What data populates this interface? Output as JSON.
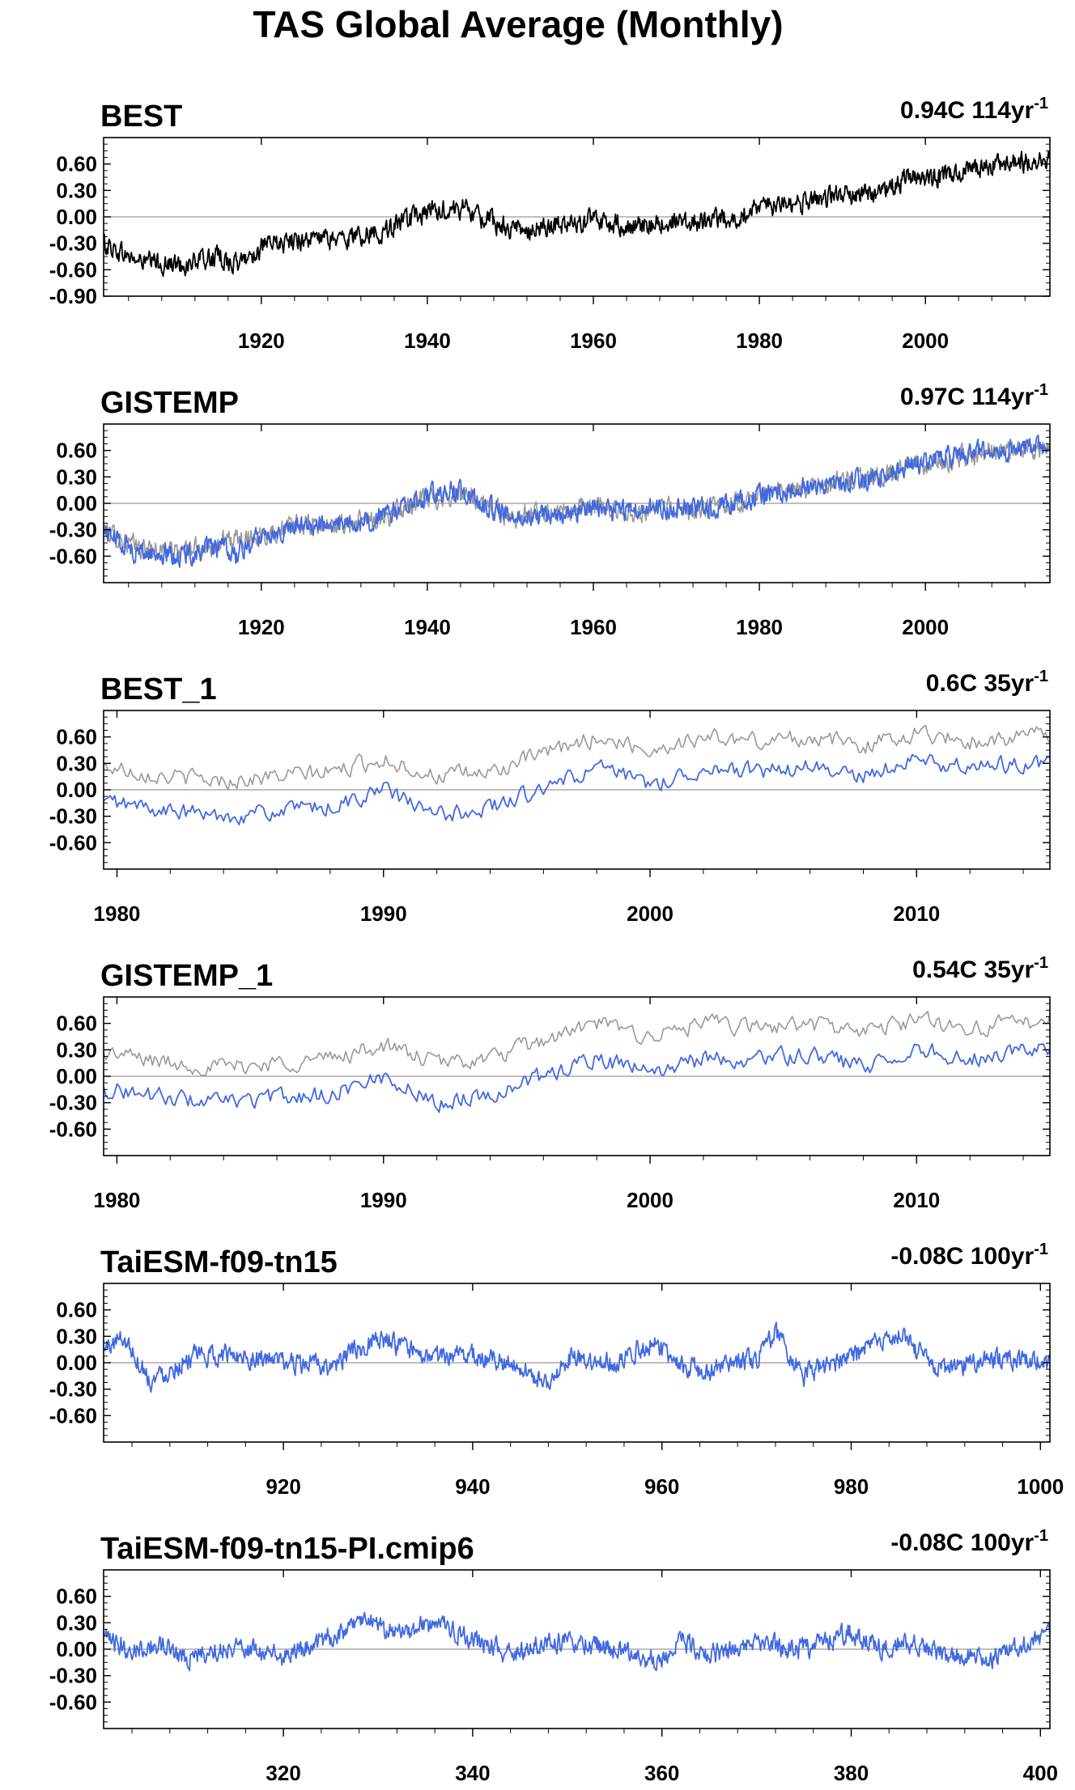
{
  "figure_title": "TAS Global Average (Monthly)",
  "colors": {
    "model": "#4169e1",
    "obs": "#000000",
    "reference": "#999999",
    "zero_line": "#999999"
  },
  "chart_data": [
    {
      "type": "line",
      "name": "BEST",
      "trend_label": "0.94C 114yr",
      "trend_exponent": "-1",
      "xlim": [
        1901,
        2015
      ],
      "ylim": [
        -0.9,
        0.9
      ],
      "yticks": [
        "0.60",
        "0.30",
        "0.00",
        "-0.30",
        "-0.60",
        "-0.90"
      ],
      "ytick_values": [
        0.6,
        0.3,
        0.0,
        -0.3,
        -0.6,
        -0.9
      ],
      "xticks": [
        "1920",
        "1940",
        "1960",
        "1980",
        "2000"
      ],
      "xtick_values": [
        1920,
        1940,
        1960,
        1980,
        2000
      ],
      "series": [
        {
          "color": "obs",
          "x": [
            1901,
            1905,
            1910,
            1915,
            1917,
            1920,
            1925,
            1930,
            1935,
            1940,
            1944,
            1950,
            1955,
            1960,
            1965,
            1970,
            1975,
            1980,
            1985,
            1990,
            1995,
            1998,
            2000,
            2005,
            2010,
            2015
          ],
          "y": [
            -0.3,
            -0.5,
            -0.55,
            -0.45,
            -0.55,
            -0.35,
            -0.25,
            -0.25,
            -0.15,
            0.05,
            0.1,
            -0.15,
            -0.1,
            -0.05,
            -0.1,
            -0.05,
            -0.05,
            0.1,
            0.15,
            0.25,
            0.3,
            0.45,
            0.4,
            0.55,
            0.6,
            0.65
          ]
        }
      ]
    },
    {
      "type": "line",
      "name": "GISTEMP",
      "trend_label": "0.97C 114yr",
      "trend_exponent": "-1",
      "xlim": [
        1901,
        2015
      ],
      "ylim": [
        -0.9,
        0.9
      ],
      "yticks": [
        "0.60",
        "0.30",
        "0.00",
        "-0.30",
        "-0.60"
      ],
      "ytick_values": [
        0.6,
        0.3,
        0.0,
        -0.3,
        -0.6
      ],
      "xticks": [
        "1920",
        "1940",
        "1960",
        "1980",
        "2000"
      ],
      "xtick_values": [
        1920,
        1940,
        1960,
        1980,
        2000
      ],
      "series": [
        {
          "color": "reference",
          "x": [
            1901,
            1905,
            1910,
            1915,
            1920,
            1925,
            1930,
            1935,
            1940,
            1944,
            1950,
            1955,
            1960,
            1965,
            1970,
            1975,
            1980,
            1985,
            1990,
            1995,
            1998,
            2000,
            2005,
            2010,
            2015
          ],
          "y": [
            -0.3,
            -0.5,
            -0.55,
            -0.45,
            -0.35,
            -0.25,
            -0.25,
            -0.15,
            0.05,
            0.1,
            -0.15,
            -0.1,
            -0.05,
            -0.1,
            -0.05,
            -0.05,
            0.1,
            0.15,
            0.25,
            0.3,
            0.45,
            0.4,
            0.55,
            0.6,
            0.65
          ]
        },
        {
          "color": "model",
          "x": [
            1901,
            1905,
            1910,
            1915,
            1917,
            1920,
            1925,
            1930,
            1935,
            1940,
            1944,
            1950,
            1955,
            1960,
            1965,
            1970,
            1975,
            1980,
            1985,
            1990,
            1995,
            1998,
            2000,
            2005,
            2010,
            2015
          ],
          "y": [
            -0.3,
            -0.55,
            -0.6,
            -0.5,
            -0.6,
            -0.35,
            -0.25,
            -0.25,
            -0.15,
            0.1,
            0.15,
            -0.15,
            -0.15,
            -0.05,
            -0.1,
            -0.05,
            -0.05,
            0.1,
            0.15,
            0.25,
            0.3,
            0.45,
            0.45,
            0.6,
            0.6,
            0.65
          ]
        }
      ]
    },
    {
      "type": "line",
      "name": "BEST_1",
      "trend_label": "0.6C 35yr",
      "trend_exponent": "-1",
      "xlim": [
        1979.5,
        2015
      ],
      "ylim": [
        -0.9,
        0.9
      ],
      "yticks": [
        "0.60",
        "0.30",
        "0.00",
        "-0.30",
        "-0.60"
      ],
      "ytick_values": [
        0.6,
        0.3,
        0.0,
        -0.3,
        -0.6
      ],
      "xticks": [
        "1980",
        "1990",
        "2000",
        "2010"
      ],
      "xtick_values": [
        1980,
        1990,
        2000,
        2010
      ],
      "series": [
        {
          "color": "reference",
          "x": [
            1980,
            1982,
            1984,
            1986,
            1988,
            1990,
            1992,
            1994,
            1996,
            1998,
            2000,
            2002,
            2004,
            2006,
            2008,
            2010,
            2012,
            2014,
            2015
          ],
          "y": [
            0.25,
            0.15,
            0.1,
            0.15,
            0.2,
            0.35,
            0.15,
            0.2,
            0.4,
            0.6,
            0.45,
            0.6,
            0.55,
            0.6,
            0.5,
            0.65,
            0.55,
            0.6,
            0.65
          ]
        },
        {
          "color": "model",
          "x": [
            1980,
            1982,
            1984,
            1986,
            1988,
            1990,
            1992,
            1994,
            1996,
            1998,
            2000,
            2002,
            2004,
            2006,
            2008,
            2010,
            2012,
            2014,
            2015
          ],
          "y": [
            -0.15,
            -0.25,
            -0.3,
            -0.25,
            -0.2,
            0.0,
            -0.3,
            -0.2,
            0.0,
            0.25,
            0.05,
            0.25,
            0.2,
            0.25,
            0.15,
            0.35,
            0.25,
            0.3,
            0.3
          ]
        }
      ]
    },
    {
      "type": "line",
      "name": "GISTEMP_1",
      "trend_label": "0.54C 35yr",
      "trend_exponent": "-1",
      "xlim": [
        1979.5,
        2015
      ],
      "ylim": [
        -0.9,
        0.9
      ],
      "yticks": [
        "0.60",
        "0.30",
        "0.00",
        "-0.30",
        "-0.60"
      ],
      "ytick_values": [
        0.6,
        0.3,
        0.0,
        -0.3,
        -0.6
      ],
      "xticks": [
        "1980",
        "1990",
        "2000",
        "2010"
      ],
      "xtick_values": [
        1980,
        1990,
        2000,
        2010
      ],
      "series": [
        {
          "color": "reference",
          "x": [
            1980,
            1982,
            1984,
            1986,
            1988,
            1990,
            1992,
            1994,
            1996,
            1998,
            2000,
            2002,
            2004,
            2006,
            2008,
            2010,
            2012,
            2014,
            2015
          ],
          "y": [
            0.25,
            0.15,
            0.1,
            0.15,
            0.2,
            0.35,
            0.15,
            0.2,
            0.4,
            0.6,
            0.45,
            0.6,
            0.55,
            0.6,
            0.5,
            0.65,
            0.55,
            0.6,
            0.65
          ]
        },
        {
          "color": "model",
          "x": [
            1980,
            1982,
            1984,
            1986,
            1988,
            1990,
            1992,
            1994,
            1996,
            1998,
            2000,
            2002,
            2004,
            2006,
            2008,
            2010,
            2012,
            2014,
            2015
          ],
          "y": [
            -0.15,
            -0.25,
            -0.3,
            -0.25,
            -0.2,
            0.0,
            -0.3,
            -0.2,
            0.0,
            0.2,
            0.05,
            0.2,
            0.2,
            0.25,
            0.1,
            0.3,
            0.2,
            0.3,
            0.3
          ]
        }
      ]
    },
    {
      "type": "line",
      "name": "TaiESM-f09-tn15",
      "trend_label": "-0.08C 100yr",
      "trend_exponent": "-1",
      "xlim": [
        901,
        1001
      ],
      "ylim": [
        -0.9,
        0.9
      ],
      "yticks": [
        "0.60",
        "0.30",
        "0.00",
        "-0.30",
        "-0.60"
      ],
      "ytick_values": [
        0.6,
        0.3,
        0.0,
        -0.3,
        -0.6
      ],
      "xticks": [
        "920",
        "940",
        "960",
        "980",
        "1000"
      ],
      "xtick_values": [
        920,
        940,
        960,
        980,
        1000
      ],
      "series": [
        {
          "color": "model",
          "x": [
            901,
            903,
            906,
            910,
            915,
            920,
            925,
            930,
            935,
            940,
            945,
            948,
            950,
            955,
            959,
            962,
            965,
            970,
            972,
            975,
            980,
            985,
            988,
            990,
            995,
            1000
          ],
          "y": [
            0.15,
            0.3,
            -0.2,
            0.05,
            0.1,
            0.0,
            -0.05,
            0.3,
            0.05,
            0.1,
            -0.05,
            -0.25,
            0.05,
            0.0,
            0.25,
            -0.05,
            -0.1,
            0.05,
            0.35,
            -0.15,
            0.05,
            0.35,
            0.0,
            -0.05,
            0.05,
            0.0
          ]
        }
      ]
    },
    {
      "type": "line",
      "name": "TaiESM-f09-tn15-PI.cmip6",
      "trend_label": "-0.08C 100yr",
      "trend_exponent": "-1",
      "xlim": [
        301,
        401
      ],
      "ylim": [
        -0.9,
        0.9
      ],
      "yticks": [
        "0.60",
        "0.30",
        "0.00",
        "-0.30",
        "-0.60"
      ],
      "ytick_values": [
        0.6,
        0.3,
        0.0,
        -0.3,
        -0.6
      ],
      "xticks": [
        "320",
        "340",
        "360",
        "380",
        "400"
      ],
      "xtick_values": [
        320,
        340,
        360,
        380,
        400
      ],
      "series": [
        {
          "color": "model",
          "x": [
            301,
            304,
            307,
            310,
            315,
            320,
            325,
            329,
            332,
            336,
            340,
            344,
            347,
            350,
            355,
            360,
            362,
            365,
            370,
            375,
            380,
            383,
            385,
            390,
            395,
            400
          ],
          "y": [
            0.1,
            0.0,
            0.05,
            -0.1,
            0.05,
            -0.1,
            0.15,
            0.35,
            0.15,
            0.3,
            0.1,
            -0.05,
            0.05,
            0.1,
            0.0,
            -0.15,
            0.1,
            -0.05,
            0.05,
            0.0,
            0.2,
            0.0,
            0.1,
            -0.05,
            -0.1,
            0.15
          ]
        }
      ]
    }
  ]
}
